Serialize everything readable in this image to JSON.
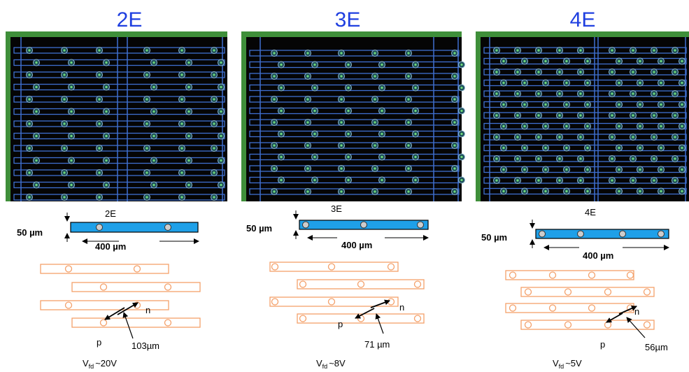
{
  "panels": [
    {
      "title": "2E",
      "label": "2E",
      "height": "50 µm",
      "length": "400 µm",
      "n": "n",
      "p": "p",
      "pitch": "103µm",
      "vfd_symbol": "V",
      "vfd_sub": "fd",
      "vfd_value": "~20V"
    },
    {
      "title": "3E",
      "label": "3E",
      "height": "50 µm",
      "length": "400 µm",
      "n": "n",
      "p": "p",
      "pitch": "71 µm",
      "vfd_symbol": "V",
      "vfd_sub": "fd",
      "vfd_value": "~8V"
    },
    {
      "title": "4E",
      "label": "4E",
      "height": "50 µm",
      "length": "400 µm",
      "n": "n",
      "p": "p",
      "pitch": "56µm",
      "vfd_symbol": "V",
      "vfd_sub": "fd",
      "vfd_value": "~5V"
    }
  ]
}
